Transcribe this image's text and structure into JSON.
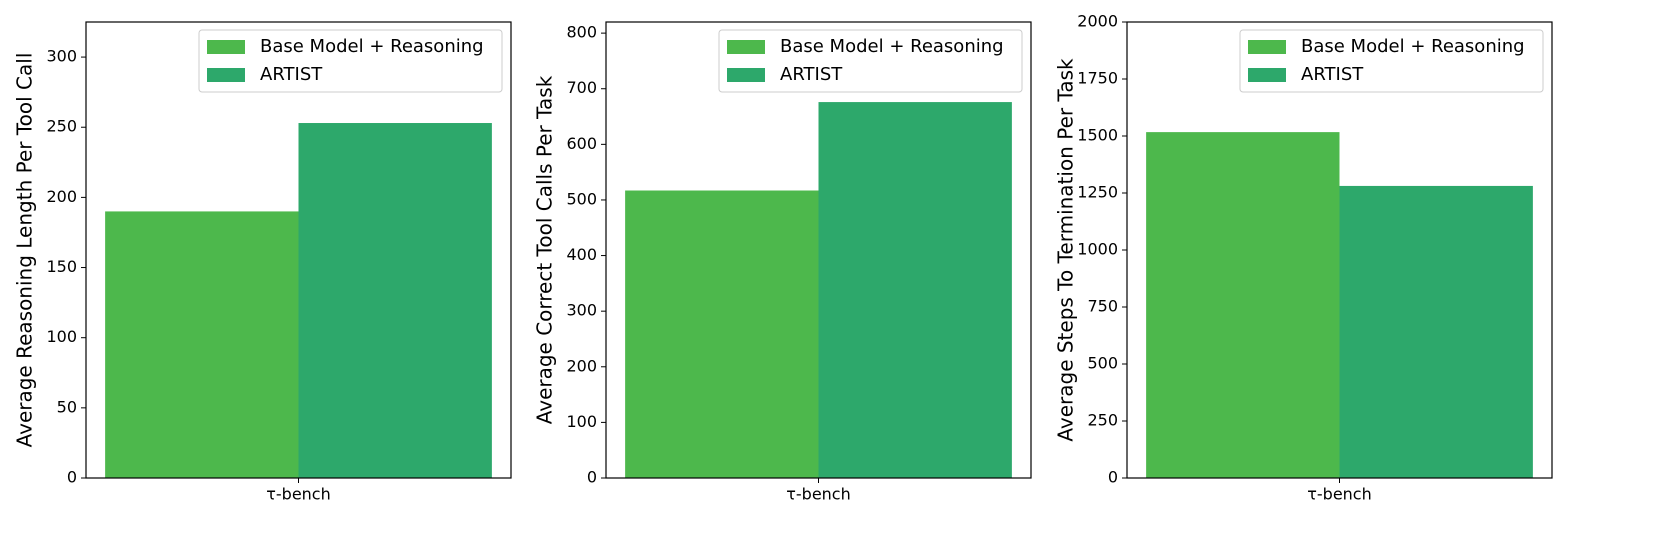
{
  "chart_data": [
    {
      "type": "bar",
      "ylabel": "Average Reasoning Length Per Tool Call",
      "categories": [
        "τ-bench"
      ],
      "series": [
        {
          "name": "Base Model + Reasoning",
          "color": "#4db84c",
          "values": [
            190
          ]
        },
        {
          "name": "ARTIST",
          "color": "#2da86b",
          "values": [
            253
          ]
        }
      ],
      "ylim": [
        0,
        325
      ],
      "yticks": [
        0,
        50,
        100,
        150,
        200,
        250,
        300
      ],
      "legend": "upper right"
    },
    {
      "type": "bar",
      "ylabel": "Average Correct Tool Calls Per Task",
      "categories": [
        "τ-bench"
      ],
      "series": [
        {
          "name": "Base Model + Reasoning",
          "color": "#4db84c",
          "values": [
            517
          ]
        },
        {
          "name": "ARTIST",
          "color": "#2da86b",
          "values": [
            676
          ]
        }
      ],
      "ylim": [
        0,
        820
      ],
      "yticks": [
        0,
        100,
        200,
        300,
        400,
        500,
        600,
        700,
        800
      ],
      "legend": "upper right"
    },
    {
      "type": "bar",
      "ylabel": "Average Steps To Termination Per Task",
      "categories": [
        "τ-bench"
      ],
      "series": [
        {
          "name": "Base Model + Reasoning",
          "color": "#4db84c",
          "values": [
            1517
          ]
        },
        {
          "name": "ARTIST",
          "color": "#2da86b",
          "values": [
            1281
          ]
        }
      ],
      "ylim": [
        0,
        2000
      ],
      "yticks": [
        0,
        250,
        500,
        750,
        1000,
        1250,
        1500,
        1750,
        2000
      ],
      "legend": "upper right"
    }
  ]
}
